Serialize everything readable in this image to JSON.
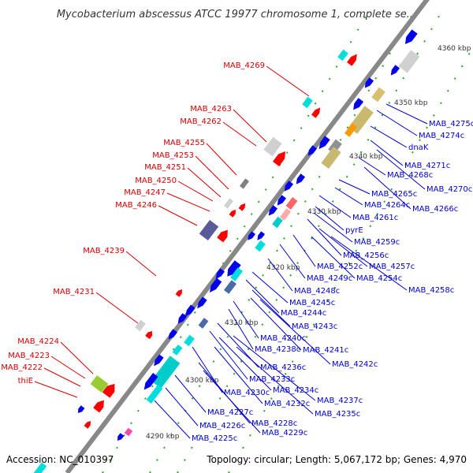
{
  "title": "Mycobacterium abscessus ATCC 19977 chromosome 1, complete se...",
  "accession": "Accession: NC_010397",
  "summary": "Topology: circular; Length: 5,067,172 bp; Genes: 4,970",
  "colors": {
    "forward_label": "#d40000",
    "reverse_label": "#0000cc",
    "backbone": "#888888",
    "forward_arrow": "#ff0000",
    "reverse_arrow": "#0000ee",
    "tick_dot": "#118811"
  },
  "kbp_ticks": [
    {
      "label": "4290 kbp"
    },
    {
      "label": "4300 kbp"
    },
    {
      "label": "4310 kbp"
    },
    {
      "label": "4320 kbp"
    },
    {
      "label": "4330 kbp"
    },
    {
      "label": "4340 kbp"
    },
    {
      "label": "4350 kbp"
    },
    {
      "label": "4360 kbp"
    }
  ],
  "forward_labels": [
    {
      "name": "MAB_4269"
    },
    {
      "name": "MAB_4263"
    },
    {
      "name": "MAB_4262"
    },
    {
      "name": "MAB_4255"
    },
    {
      "name": "MAB_4253"
    },
    {
      "name": "MAB_4251"
    },
    {
      "name": "MAB_4250"
    },
    {
      "name": "MAB_4247"
    },
    {
      "name": "MAB_4246"
    },
    {
      "name": "MAB_4239"
    },
    {
      "name": "MAB_4231"
    },
    {
      "name": "MAB_4224"
    },
    {
      "name": "MAB_4223"
    },
    {
      "name": "MAB_4222"
    },
    {
      "name": "thiE"
    }
  ],
  "reverse_labels": [
    {
      "name": "MAB_4275c"
    },
    {
      "name": "MAB_4274c"
    },
    {
      "name": "dnaK"
    },
    {
      "name": "MAB_4271c"
    },
    {
      "name": "MAB_4268c"
    },
    {
      "name": "MAB_4270c"
    },
    {
      "name": "MAB_4265c"
    },
    {
      "name": "MAB_4264c"
    },
    {
      "name": "MAB_4266c"
    },
    {
      "name": "MAB_4261c"
    },
    {
      "name": "pyrE"
    },
    {
      "name": "MAB_4259c"
    },
    {
      "name": "MAB_4256c"
    },
    {
      "name": "MAB_4252c"
    },
    {
      "name": "MAB_4257c"
    },
    {
      "name": "MAB_4249c"
    },
    {
      "name": "MAB_4254c"
    },
    {
      "name": "MAB_4248c"
    },
    {
      "name": "MAB_4258c"
    },
    {
      "name": "MAB_4245c"
    },
    {
      "name": "MAB_4244c"
    },
    {
      "name": "MAB_4243c"
    },
    {
      "name": "MAB_4240c"
    },
    {
      "name": "MAB_4238c"
    },
    {
      "name": "MAB_4241c"
    },
    {
      "name": "MAB_4242c"
    },
    {
      "name": "MAB_4236c"
    },
    {
      "name": "MAB_4233c"
    },
    {
      "name": "MAB_4234c"
    },
    {
      "name": "MAB_4230c"
    },
    {
      "name": "MAB_4237c"
    },
    {
      "name": "MAB_4232c"
    },
    {
      "name": "MAB_4235c"
    },
    {
      "name": "MAB_4227c"
    },
    {
      "name": "MAB_4228c"
    },
    {
      "name": "MAB_4226c"
    },
    {
      "name": "MAB_4229c"
    },
    {
      "name": "MAB_4225c"
    }
  ]
}
